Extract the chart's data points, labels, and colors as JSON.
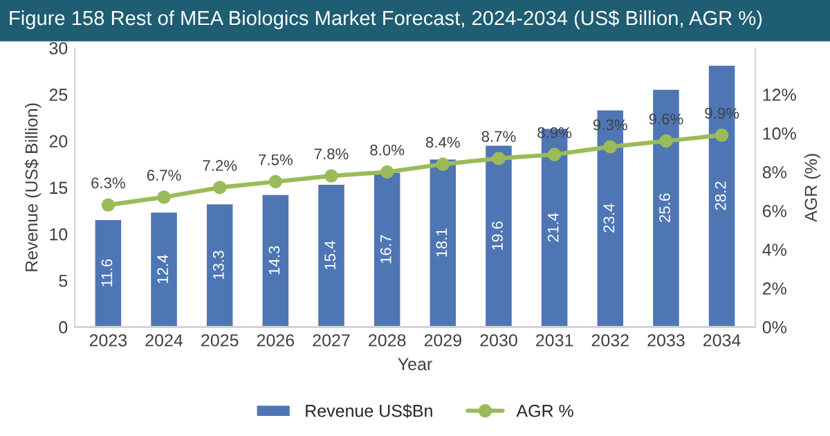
{
  "chart_data": {
    "type": "bar",
    "title": "Figure 158 Rest of MEA Biologics Market Forecast, 2024-2034 (US$ Billion, AGR %)",
    "xlabel": "Year",
    "ylabel": "Revenue (US$ Billion)",
    "y2label": "AGR (%)",
    "categories": [
      "2023",
      "2024",
      "2025",
      "2026",
      "2027",
      "2028",
      "2029",
      "2030",
      "2031",
      "2032",
      "2033",
      "2034"
    ],
    "series": [
      {
        "name": "Revenue US$Bn",
        "color": "#4f76b4",
        "values": [
          11.6,
          12.4,
          13.3,
          14.3,
          15.4,
          16.7,
          18.1,
          19.6,
          21.4,
          23.4,
          25.6,
          28.2
        ],
        "value_labels": [
          "11.6",
          "12.4",
          "13.3",
          "14.3",
          "15.4",
          "16.7",
          "18.1",
          "19.6",
          "21.4",
          "23.4",
          "25.6",
          "28.2"
        ]
      },
      {
        "name": "AGR %",
        "type": "line",
        "axis": "y2",
        "color": "#9bbb59",
        "marker": "circle",
        "values": [
          6.3,
          6.7,
          7.2,
          7.5,
          7.8,
          8.0,
          8.4,
          8.7,
          8.9,
          9.3,
          9.6,
          9.9
        ],
        "value_labels": [
          "6.3%",
          "6.7%",
          "7.2%",
          "7.5%",
          "7.8%",
          "8.0%",
          "8.4%",
          "8.7%",
          "8.9%",
          "9.3%",
          "9.6%",
          "9.9%"
        ]
      }
    ],
    "ylim": [
      0,
      30
    ],
    "yticks": [
      0,
      5,
      10,
      15,
      20,
      25,
      30
    ],
    "y2lim": [
      0,
      14.4
    ],
    "y2ticks": [
      {
        "value": 0,
        "label": "0%"
      },
      {
        "value": 2,
        "label": "2%"
      },
      {
        "value": 4,
        "label": "4%"
      },
      {
        "value": 6,
        "label": "6%"
      },
      {
        "value": 8,
        "label": "8%"
      },
      {
        "value": 10,
        "label": "10%"
      },
      {
        "value": 12,
        "label": "12%"
      }
    ],
    "grid": false,
    "legend": "bottom"
  }
}
